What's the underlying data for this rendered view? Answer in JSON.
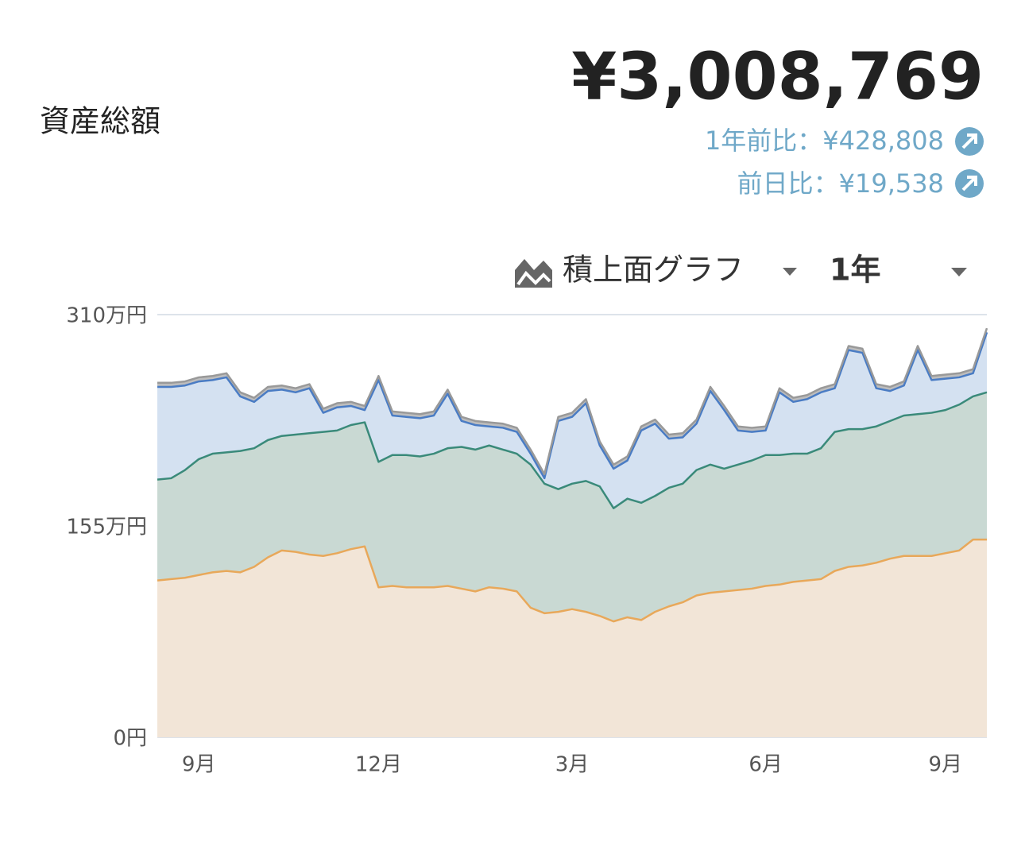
{
  "header": {
    "title": "資産総額",
    "total": "¥3,008,769",
    "change_year": "1年前比：¥428,808",
    "change_day": "前日比：¥19,538"
  },
  "controls": {
    "chart_type": "積上面グラフ",
    "period": "1年"
  },
  "chart_data": {
    "type": "stacked_area",
    "categories": [
      null,
      null,
      null,
      "9月",
      null,
      null,
      null,
      null,
      null,
      null,
      null,
      null,
      null,
      null,
      null,
      null,
      "12月",
      null,
      null,
      null,
      null,
      null,
      null,
      null,
      null,
      null,
      null,
      null,
      null,
      null,
      "3月",
      null,
      null,
      null,
      null,
      null,
      null,
      null,
      null,
      null,
      null,
      null,
      null,
      null,
      "6月",
      null,
      null,
      null,
      null,
      null,
      null,
      null,
      null,
      null,
      null,
      null,
      null,
      "9月",
      null,
      null,
      null
    ],
    "ylim": [
      0,
      310
    ],
    "yticks": [
      {
        "value": 0,
        "label": "0円"
      },
      {
        "value": 155,
        "label": "155万円"
      },
      {
        "value": 310,
        "label": "310万円"
      }
    ],
    "grid": true,
    "series": [
      {
        "color": "#e8a85a",
        "fill": "#f2e5d7",
        "values": [
          115,
          116,
          117,
          119,
          121,
          122,
          121,
          125,
          132,
          137,
          136,
          134,
          133,
          135,
          138,
          140,
          110,
          111,
          110,
          110,
          110,
          111,
          109,
          107,
          110,
          109,
          107,
          95,
          91,
          92,
          94,
          92,
          89,
          85,
          88,
          86,
          92,
          96,
          99,
          104,
          106,
          107,
          108,
          109,
          111,
          112,
          114,
          115,
          116,
          122,
          125,
          126,
          128,
          131,
          133,
          133,
          133,
          135,
          137,
          145,
          145
        ]
      },
      {
        "color": "#3a8a7a",
        "fill": "#c9d9d3",
        "values": [
          74,
          74,
          79,
          85,
          87,
          87,
          89,
          87,
          86,
          84,
          86,
          89,
          91,
          90,
          91,
          91,
          92,
          96,
          97,
          96,
          98,
          101,
          104,
          104,
          104,
          102,
          101,
          105,
          95,
          90,
          92,
          96,
          95,
          83,
          87,
          86,
          85,
          87,
          87,
          92,
          94,
          90,
          92,
          94,
          96,
          95,
          94,
          93,
          96,
          102,
          101,
          100,
          100,
          101,
          103,
          104,
          105,
          105,
          107,
          105,
          108
        ]
      },
      {
        "color": "#4a7cc4",
        "fill": "#d4e1f1",
        "values": [
          68,
          67,
          62,
          57,
          54,
          55,
          40,
          34,
          36,
          34,
          31,
          33,
          14,
          17,
          14,
          9,
          60,
          29,
          28,
          28,
          28,
          40,
          19,
          18,
          14,
          16,
          16,
          8,
          4,
          50,
          49,
          57,
          30,
          29,
          28,
          53,
          53,
          36,
          34,
          34,
          54,
          43,
          25,
          21,
          18,
          46,
          38,
          40,
          41,
          32,
          58,
          56,
          28,
          22,
          22,
          47,
          24,
          23,
          20,
          17,
          44
        ]
      },
      {
        "color": "#999999",
        "fill": "#bdbdbd",
        "values": [
          3,
          3,
          3,
          3,
          3,
          3,
          3,
          3,
          3,
          3,
          3,
          3,
          3,
          3,
          3,
          3,
          3,
          3,
          3,
          3,
          3,
          3,
          3,
          3,
          3,
          3,
          3,
          3,
          3,
          3,
          3,
          3,
          3,
          3,
          3,
          3,
          3,
          3,
          3,
          3,
          3,
          3,
          3,
          3,
          3,
          3,
          3,
          3,
          3,
          3,
          3,
          3,
          3,
          3,
          3,
          3,
          3,
          3,
          3,
          3,
          3
        ]
      }
    ]
  }
}
